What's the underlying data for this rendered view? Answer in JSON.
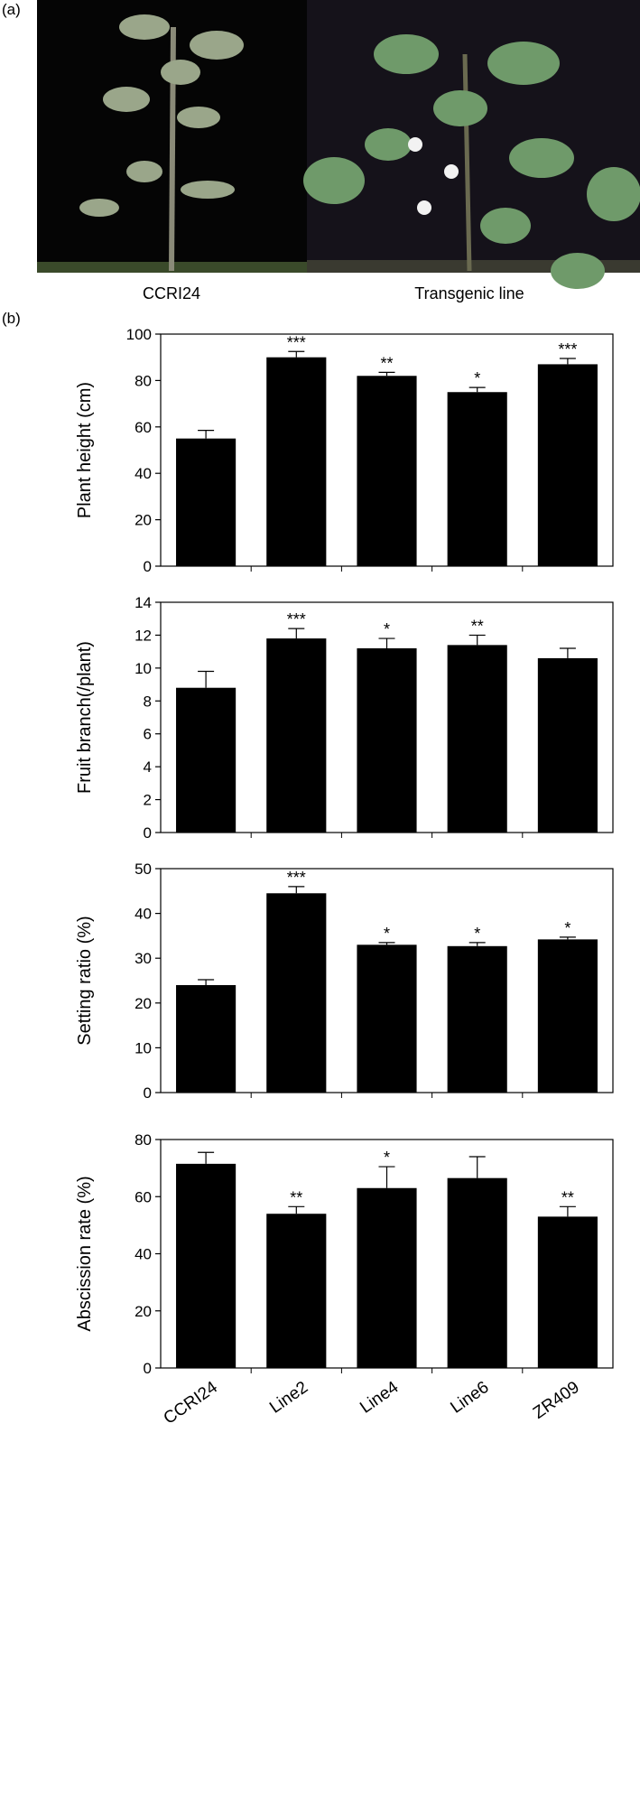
{
  "panel_labels": [
    "(a)",
    "(b)"
  ],
  "photos": {
    "labels": [
      "CCRI24",
      "Transgenic line"
    ]
  },
  "chart_data": [
    {
      "type": "bar",
      "ylabel": "Plant height (cm)",
      "color": "#000000",
      "values": [
        55,
        90,
        82,
        75,
        87
      ],
      "errors": [
        3.5,
        2.5,
        1.5,
        2,
        2.5
      ],
      "annotations": [
        null,
        "***",
        "**",
        "*",
        "***"
      ],
      "ylim": [
        0,
        100
      ],
      "yticks": [
        0,
        20,
        40,
        60,
        80,
        100
      ]
    },
    {
      "type": "bar",
      "ylabel": "Fruit branch(/plant)",
      "color": "#000000",
      "values": [
        8.8,
        11.8,
        11.2,
        11.4,
        10.6
      ],
      "errors": [
        1,
        0.6,
        0.6,
        0.6,
        0.6
      ],
      "annotations": [
        null,
        "***",
        "*",
        "**",
        null
      ],
      "ylim": [
        0,
        14
      ],
      "yticks": [
        0,
        2,
        4,
        6,
        8,
        10,
        12,
        14
      ]
    },
    {
      "type": "bar",
      "ylabel": "Setting ratio (%)",
      "color": "#000000",
      "values": [
        24,
        44.5,
        33,
        32.7,
        34.2
      ],
      "errors": [
        1.2,
        1.5,
        0.5,
        0.8,
        0.5
      ],
      "annotations": [
        null,
        "***",
        "*",
        "*",
        "*"
      ],
      "ylim": [
        0,
        50
      ],
      "yticks": [
        0,
        10,
        20,
        30,
        40,
        50
      ]
    },
    {
      "type": "bar",
      "ylabel": "Abscission rate (%)",
      "color": "#000000",
      "categories": [
        "CCRI24",
        "Line2",
        "Line4",
        "Line6",
        "ZR409"
      ],
      "values": [
        71.5,
        54,
        63,
        66.5,
        53
      ],
      "errors": [
        4,
        2.5,
        7.5,
        7.5,
        3.5
      ],
      "annotations": [
        null,
        "**",
        "*",
        null,
        "**"
      ],
      "ylim": [
        0,
        80
      ],
      "yticks": [
        0,
        20,
        40,
        60,
        80
      ]
    }
  ]
}
